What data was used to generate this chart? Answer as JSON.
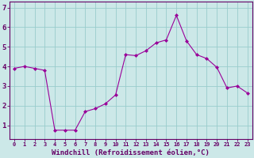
{
  "x": [
    0,
    1,
    2,
    3,
    4,
    5,
    6,
    7,
    8,
    9,
    10,
    11,
    12,
    13,
    14,
    15,
    16,
    17,
    18,
    19,
    20,
    21,
    22,
    23
  ],
  "y": [
    3.9,
    4.0,
    3.9,
    3.8,
    0.75,
    0.75,
    0.75,
    1.7,
    1.85,
    2.1,
    2.55,
    4.6,
    4.55,
    4.8,
    5.2,
    5.35,
    6.6,
    5.3,
    4.6,
    4.4,
    3.95,
    2.9,
    3.0,
    2.65
  ],
  "line_color": "#990099",
  "marker": "D",
  "marker_size": 2.0,
  "bg_color": "#cce8e8",
  "grid_color": "#99cccc",
  "axis_color": "#660066",
  "tick_color": "#660066",
  "xlabel": "Windchill (Refroidissement éolien,°C)",
  "xlabel_fontsize": 6.5,
  "ytick_labels": [
    "1",
    "2",
    "3",
    "4",
    "5",
    "6",
    "7"
  ],
  "ytick_values": [
    1,
    2,
    3,
    4,
    5,
    6,
    7
  ],
  "ylim": [
    0.3,
    7.3
  ],
  "xlim": [
    -0.5,
    23.5
  ],
  "xtick_fontsize": 5.0,
  "ytick_fontsize": 6.5
}
